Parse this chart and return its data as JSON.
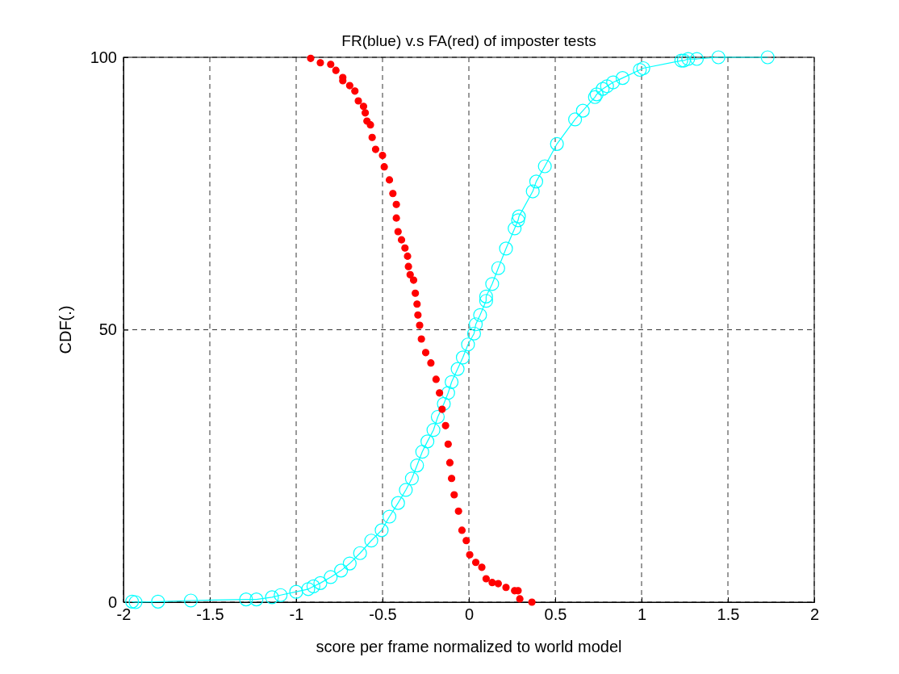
{
  "chart_data": {
    "type": "line",
    "title": "FR(blue) v.s FA(red) of imposter tests",
    "xlabel": "score per frame normalized to world model",
    "ylabel": "CDF(.)",
    "xlim": [
      -2,
      2
    ],
    "xticks": [
      -2,
      -1.5,
      -1,
      -0.5,
      0,
      0.5,
      1,
      1.5,
      2
    ],
    "ylim": [
      0,
      100
    ],
    "yticks": [
      0,
      50,
      100
    ],
    "grid": true,
    "series": [
      {
        "marker": "circle",
        "line_style": "solid",
        "color": "#00ffff",
        "x": [
          -1.95,
          -1.93,
          -1.8,
          -1.61,
          -1.29,
          -1.23,
          -1.14,
          -1.09,
          -1.0,
          -0.93,
          -0.9,
          -0.86,
          -0.8,
          -0.74,
          -0.69,
          -0.63,
          -0.565,
          -0.505,
          -0.46,
          -0.41,
          -0.365,
          -0.33,
          -0.3,
          -0.27,
          -0.24,
          -0.205,
          -0.18,
          -0.145,
          -0.12,
          -0.1,
          -0.065,
          -0.035,
          -0.005,
          0.03,
          0.04,
          0.065,
          0.1,
          0.1,
          0.135,
          0.17,
          0.215,
          0.265,
          0.285,
          0.29,
          0.37,
          0.39,
          0.44,
          0.51,
          0.615,
          0.66,
          0.73,
          0.74,
          0.775,
          0.8,
          0.835,
          0.89,
          0.99,
          1.01,
          1.23,
          1.245,
          1.27,
          1.32,
          1.445,
          1.73
        ],
        "values": [
          0.1,
          0,
          0.1,
          0.3,
          0.5,
          0.5,
          0.9,
          1.3,
          1.9,
          2.4,
          2.9,
          3.5,
          4.6,
          5.8,
          7.1,
          9.0,
          11.3,
          13.2,
          15.7,
          18.2,
          20.6,
          22.7,
          25.1,
          27.6,
          29.5,
          31.6,
          34.0,
          36.4,
          38.4,
          40.4,
          42.8,
          44.9,
          47.3,
          49.3,
          51.0,
          52.7,
          55.3,
          56.1,
          58.4,
          61.3,
          64.9,
          68.6,
          70.1,
          70.8,
          75.4,
          77.2,
          80,
          84.1,
          88.6,
          90.2,
          92.7,
          93.2,
          94.2,
          94.7,
          95.4,
          96.2,
          97.7,
          98.0,
          99.4,
          99.4,
          99.7,
          99.7,
          100,
          100
        ]
      },
      {
        "type": "scatter",
        "marker": "circle",
        "color": "#ff0000",
        "x": [
          -0.916,
          -0.86,
          -0.8,
          -0.77,
          -0.73,
          -0.73,
          -0.69,
          -0.66,
          -0.64,
          -0.61,
          -0.6,
          -0.59,
          -0.57,
          -0.56,
          -0.54,
          -0.5,
          -0.49,
          -0.46,
          -0.44,
          -0.42,
          -0.42,
          -0.41,
          -0.39,
          -0.37,
          -0.355,
          -0.35,
          -0.34,
          -0.32,
          -0.31,
          -0.3,
          -0.295,
          -0.285,
          -0.275,
          -0.25,
          -0.22,
          -0.19,
          -0.17,
          -0.155,
          -0.135,
          -0.12,
          -0.11,
          -0.1,
          -0.085,
          -0.06,
          -0.04,
          -0.015,
          0.005,
          0.04,
          0.075,
          0.1,
          0.135,
          0.17,
          0.215,
          0.265,
          0.285,
          0.295,
          0.365
        ],
        "values": [
          99.8,
          99.0,
          98.7,
          97.6,
          96.3,
          95.7,
          94.8,
          93.8,
          92,
          91,
          89.8,
          88.3,
          87.6,
          85.3,
          83.1,
          82,
          79.9,
          77.5,
          75,
          73,
          70.5,
          68,
          66.5,
          65,
          63.5,
          61.6,
          60.1,
          59.1,
          56.7,
          54.7,
          52.7,
          50.8,
          48.3,
          45.8,
          43.9,
          40.9,
          38.4,
          35.4,
          32.4,
          29,
          25.6,
          22.7,
          19.7,
          16.7,
          13.2,
          11.3,
          8.7,
          7.3,
          6.4,
          4.3,
          3.6,
          3.4,
          2.7,
          2.1,
          2.1,
          0.6,
          0
        ]
      }
    ]
  }
}
